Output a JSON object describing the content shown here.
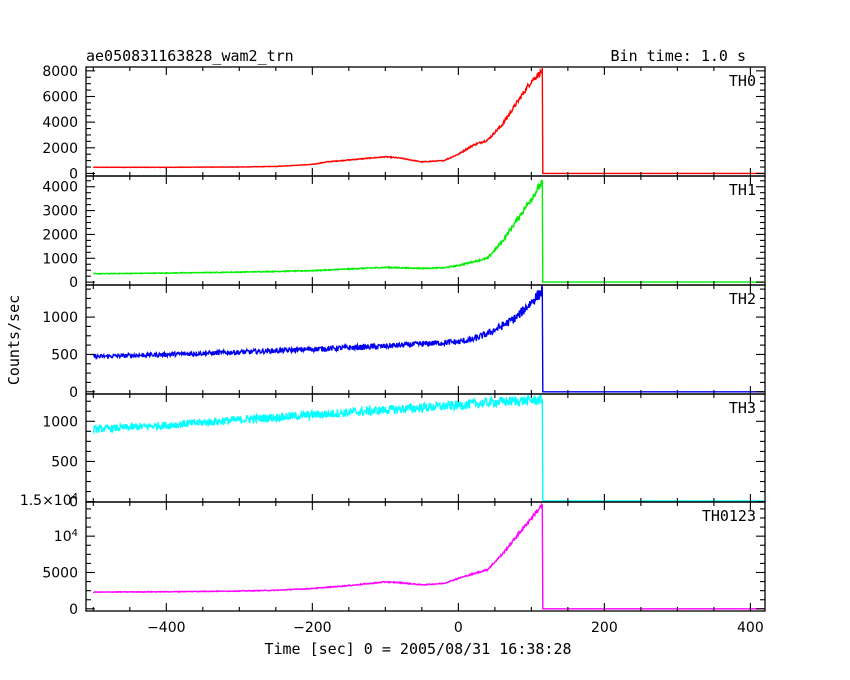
{
  "chart_data": {
    "type": "line",
    "title": "ae050831163828_wam2_trn",
    "subtitle": "Bin time: 1.0 s",
    "xlabel": "Time [sec] 0 = 2005/08/31 16:38:28",
    "ylabel": "Counts/sec",
    "xlim": [
      -510,
      420
    ],
    "x_ticks": [
      -400,
      -200,
      0,
      200,
      400
    ],
    "x_tick_labels": [
      "−400",
      "−200",
      "0",
      "200",
      "400"
    ],
    "panels": [
      {
        "name": "TH0",
        "color": "#ff0000",
        "ylim": [
          -200,
          8300
        ],
        "y_ticks": [
          0,
          2000,
          4000,
          6000,
          8000
        ],
        "y_tick_labels": [
          "0",
          "2000",
          "4000",
          "6000",
          "8000"
        ],
        "x": [
          -500,
          -400,
          -300,
          -250,
          -200,
          -180,
          -150,
          -120,
          -100,
          -80,
          -50,
          -20,
          0,
          20,
          40,
          60,
          80,
          100,
          115,
          116,
          400
        ],
        "y": [
          480,
          480,
          500,
          550,
          700,
          900,
          1050,
          1200,
          1300,
          1200,
          900,
          1000,
          1500,
          2200,
          2600,
          3800,
          5500,
          7200,
          8000,
          0,
          0
        ],
        "noise": 0.03
      },
      {
        "name": "TH1",
        "color": "#00ee00",
        "ylim": [
          -120,
          4450
        ],
        "y_ticks": [
          0,
          1000,
          2000,
          3000,
          4000
        ],
        "y_tick_labels": [
          "0",
          "1000",
          "2000",
          "3000",
          "4000"
        ],
        "x": [
          -500,
          -400,
          -300,
          -200,
          -150,
          -100,
          -80,
          -50,
          -20,
          0,
          20,
          40,
          60,
          80,
          100,
          115,
          116,
          400
        ],
        "y": [
          350,
          380,
          420,
          480,
          550,
          620,
          600,
          580,
          600,
          700,
          850,
          1000,
          1700,
          2600,
          3500,
          4200,
          0,
          0
        ],
        "noise": 0.04
      },
      {
        "name": "TH2",
        "color": "#0000ee",
        "ylim": [
          -30,
          1430
        ],
        "y_ticks": [
          0,
          500,
          1000
        ],
        "y_tick_labels": [
          "0",
          "500",
          "1000"
        ],
        "x": [
          -500,
          -400,
          -300,
          -200,
          -100,
          -50,
          0,
          20,
          40,
          60,
          80,
          100,
          115,
          116,
          400
        ],
        "y": [
          470,
          500,
          530,
          570,
          610,
          640,
          670,
          700,
          780,
          880,
          1000,
          1200,
          1350,
          0,
          0
        ],
        "noise": 0.06
      },
      {
        "name": "TH3",
        "color": "#00ffff",
        "ylim": [
          -5,
          1340
        ],
        "y_ticks": [
          0,
          500,
          1000
        ],
        "y_tick_labels": [
          "0",
          "500",
          "1000"
        ],
        "x": [
          -500,
          -400,
          -300,
          -200,
          -100,
          0,
          50,
          100,
          115,
          116,
          400
        ],
        "y": [
          900,
          950,
          1020,
          1080,
          1140,
          1200,
          1240,
          1260,
          1270,
          0,
          0
        ],
        "noise": 0.05
      },
      {
        "name": "TH0123",
        "color": "#ff00ff",
        "ylim": [
          -300,
          14700
        ],
        "y_ticks": [
          0,
          5000,
          10000,
          15000
        ],
        "y_tick_labels": [
          "0",
          "5000",
          "10^4",
          "1.5×10^4"
        ],
        "x": [
          -500,
          -400,
          -300,
          -250,
          -200,
          -150,
          -120,
          -100,
          -80,
          -50,
          -20,
          0,
          20,
          40,
          60,
          80,
          100,
          115,
          116,
          400
        ],
        "y": [
          2300,
          2350,
          2450,
          2550,
          2800,
          3200,
          3500,
          3700,
          3600,
          3300,
          3500,
          4200,
          4800,
          5400,
          7500,
          10000,
          12500,
          14300,
          0,
          0
        ],
        "noise": 0.02
      }
    ]
  }
}
